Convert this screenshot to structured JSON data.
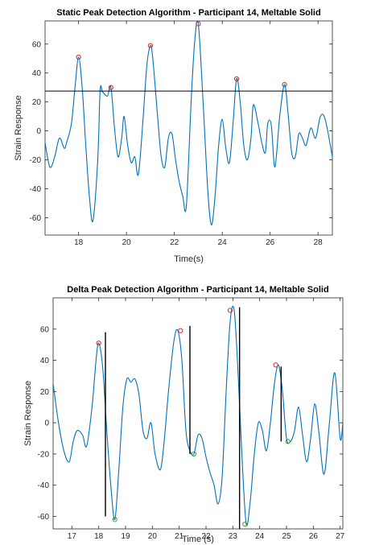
{
  "chart_data": [
    {
      "type": "line",
      "title": "Static Peak Detection Algorithm - Participant 14, Meltable Solid",
      "xlabel": "Time(s)",
      "ylabel": "Strain Response",
      "xlim": [
        16.6,
        28.6
      ],
      "ylim": [
        -72,
        76
      ],
      "xticks": [
        18,
        20,
        22,
        24,
        26,
        28
      ],
      "yticks": [
        -60,
        -40,
        -20,
        0,
        20,
        40,
        60
      ],
      "grid": false,
      "line_color": "#0072bd",
      "series": [
        {
          "x": [
            16.6,
            16.8,
            17.0,
            17.2,
            17.4,
            17.5,
            17.7,
            17.85,
            18.0,
            18.15,
            18.3,
            18.45,
            18.6,
            18.8,
            18.9,
            19.0,
            19.2,
            19.35,
            19.5,
            19.65,
            19.8,
            19.9,
            20.05,
            20.2,
            20.35,
            20.5,
            20.7,
            20.85,
            21.0,
            21.1,
            21.3,
            21.45,
            21.6,
            21.75,
            21.9,
            22.05,
            22.2,
            22.35,
            22.5,
            22.7,
            22.85,
            23.0,
            23.2,
            23.4,
            23.55,
            23.7,
            23.85,
            24.0,
            24.15,
            24.3,
            24.45,
            24.6,
            24.75,
            24.9,
            25.05,
            25.2,
            25.3,
            25.5,
            25.65,
            25.8,
            25.9,
            26.05,
            26.2,
            26.4,
            26.6,
            26.75,
            26.9,
            27.05,
            27.2,
            27.35,
            27.5,
            27.7,
            27.9,
            28.1,
            28.3,
            28.6
          ],
          "y": [
            -8,
            -25,
            -18,
            -5,
            -12,
            -8,
            5,
            30,
            51,
            30,
            -10,
            -45,
            -62,
            -20,
            28,
            27,
            24,
            30,
            2,
            -18,
            -5,
            10,
            -10,
            -22,
            -18,
            -30,
            10,
            45,
            59,
            50,
            10,
            -18,
            -25,
            -5,
            -2,
            -20,
            -35,
            -45,
            -52,
            20,
            62,
            74,
            20,
            -42,
            -65,
            -45,
            -10,
            8,
            -12,
            -22,
            5,
            36,
            20,
            -10,
            -20,
            -5,
            18,
            5,
            -8,
            -15,
            5,
            4,
            -25,
            10,
            32,
            12,
            -15,
            -18,
            -2,
            -5,
            -10,
            2,
            -5,
            10,
            8,
            -18
          ]
        }
      ],
      "threshold": 27.5,
      "threshold_color": "#000000",
      "peaks": [
        {
          "x": 18.0,
          "y": 51
        },
        {
          "x": 19.35,
          "y": 30
        },
        {
          "x": 21.0,
          "y": 59
        },
        {
          "x": 23.0,
          "y": 74
        },
        {
          "x": 24.6,
          "y": 36
        },
        {
          "x": 26.6,
          "y": 32
        }
      ],
      "peak_color": "#d62728"
    },
    {
      "type": "line",
      "title": "Delta Peak Detection Algorithm - Participant 14, Meltable Solid",
      "xlabel": "Time (s)",
      "ylabel": "Strain Response",
      "xlim": [
        16.3,
        27.1
      ],
      "ylim": [
        -68,
        80
      ],
      "xticks": [
        17,
        18,
        19,
        20,
        21,
        22,
        23,
        24,
        25,
        26,
        27
      ],
      "yticks": [
        -60,
        -40,
        -20,
        0,
        20,
        40,
        60
      ],
      "grid": false,
      "line_color": "#0072bd",
      "series": [
        {
          "x": [
            16.3,
            16.5,
            16.7,
            16.9,
            17.05,
            17.2,
            17.4,
            17.55,
            17.75,
            17.9,
            18.0,
            18.15,
            18.3,
            18.45,
            18.6,
            18.75,
            18.9,
            19.05,
            19.2,
            19.35,
            19.5,
            19.65,
            19.8,
            19.95,
            20.1,
            20.3,
            20.45,
            20.6,
            20.8,
            20.95,
            21.1,
            21.25,
            21.4,
            21.55,
            21.7,
            21.85,
            22.0,
            22.15,
            22.3,
            22.45,
            22.6,
            22.75,
            22.9,
            23.05,
            23.2,
            23.35,
            23.5,
            23.65,
            23.8,
            23.95,
            24.1,
            24.25,
            24.4,
            24.55,
            24.7,
            24.85,
            25.0,
            25.15,
            25.3,
            25.45,
            25.6,
            25.75,
            25.9,
            26.05,
            26.2,
            26.4,
            26.6,
            26.8,
            27.0,
            27.1
          ],
          "y": [
            25,
            0,
            -18,
            -25,
            -12,
            -5,
            -8,
            -15,
            10,
            40,
            51,
            35,
            -5,
            -40,
            -62,
            -30,
            10,
            28,
            26,
            28,
            18,
            -5,
            -10,
            0,
            -20,
            -30,
            -10,
            20,
            52,
            59,
            40,
            -5,
            -18,
            -20,
            -8,
            -10,
            -22,
            -32,
            -40,
            -52,
            -35,
            20,
            65,
            72,
            30,
            -25,
            -65,
            -50,
            -20,
            0,
            -5,
            -18,
            0,
            25,
            37,
            20,
            -10,
            -12,
            -5,
            10,
            -8,
            -25,
            -10,
            12,
            -5,
            -33,
            0,
            32,
            -10,
            0
          ]
        }
      ],
      "peaks": [
        {
          "x": 18.0,
          "y": 51
        },
        {
          "x": 21.05,
          "y": 59
        },
        {
          "x": 22.9,
          "y": 72
        },
        {
          "x": 24.6,
          "y": 37
        }
      ],
      "peak_color": "#d62728",
      "troughs": [
        {
          "x": 18.6,
          "y": -62
        },
        {
          "x": 21.55,
          "y": -20
        },
        {
          "x": 23.45,
          "y": -65
        },
        {
          "x": 25.05,
          "y": -12
        }
      ],
      "trough_color": "#2ca02c",
      "delta_lines": [
        {
          "x": 18.25,
          "y1": 58,
          "y2": -60
        },
        {
          "x": 21.4,
          "y1": 62,
          "y2": -20
        },
        {
          "x": 23.25,
          "y1": 74,
          "y2": -68
        },
        {
          "x": 24.8,
          "y1": 36,
          "y2": -12
        }
      ],
      "delta_color": "#000000"
    }
  ]
}
